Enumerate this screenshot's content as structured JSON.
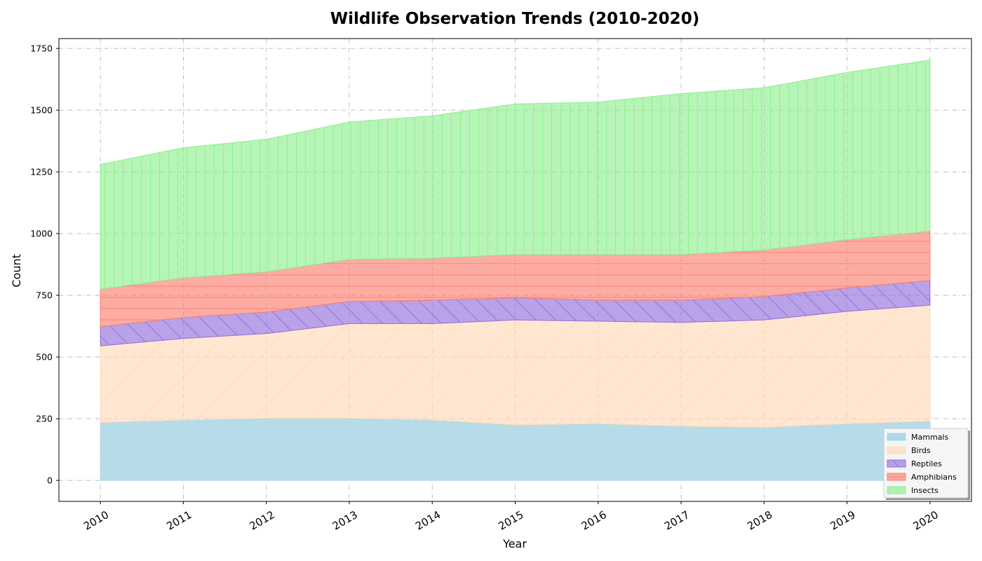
{
  "chart_data": {
    "type": "area",
    "stacked": true,
    "title": "Wildlife Observation Trends (2010-2020)",
    "xlabel": "Year",
    "ylabel": "Count",
    "x": [
      2010,
      2011,
      2012,
      2013,
      2014,
      2015,
      2016,
      2017,
      2018,
      2019,
      2020
    ],
    "xlim": [
      2009.5,
      2020.5
    ],
    "ylim": [
      -85,
      1790
    ],
    "yticks": [
      0,
      250,
      500,
      750,
      1000,
      1250,
      1500,
      1750
    ],
    "grid": true,
    "legend_position": "lower-right",
    "series": [
      {
        "name": "Mammals",
        "color": "#add8e6",
        "hatch": "none",
        "values": [
          235,
          245,
          252,
          252,
          245,
          225,
          230,
          220,
          215,
          230,
          240
        ]
      },
      {
        "name": "Birds",
        "color": "#ffdab9",
        "hatch": "diagonal",
        "values": [
          310,
          330,
          343,
          383,
          390,
          425,
          415,
          420,
          435,
          455,
          470
        ]
      },
      {
        "name": "Reptiles",
        "color": "#9370db",
        "hatch": "backslash",
        "values": [
          78,
          85,
          87,
          90,
          95,
          90,
          85,
          90,
          95,
          95,
          100
        ]
      },
      {
        "name": "Amphibians",
        "color": "#fa8072",
        "hatch": "horizontal",
        "values": [
          152,
          160,
          163,
          170,
          170,
          175,
          185,
          185,
          188,
          195,
          200
        ]
      },
      {
        "name": "Insects",
        "color": "#90ee90",
        "hatch": "vertical",
        "values": [
          505,
          528,
          537,
          557,
          577,
          610,
          618,
          652,
          658,
          678,
          693
        ]
      }
    ]
  }
}
